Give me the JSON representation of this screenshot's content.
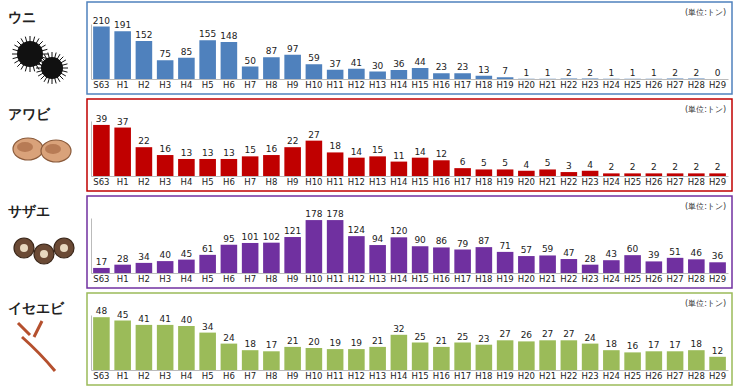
{
  "chart_data": [
    {
      "type": "bar",
      "title": "ウニ",
      "annotations": [
        "(単位:トン)"
      ],
      "categories": [
        "S63",
        "H1",
        "H2",
        "H3",
        "H4",
        "H5",
        "H6",
        "H7",
        "H8",
        "H9",
        "H10",
        "H11",
        "H12",
        "H13",
        "H14",
        "H15",
        "H16",
        "H17",
        "H18",
        "H19",
        "H20",
        "H21",
        "H22",
        "H23",
        "H24",
        "H25",
        "H26",
        "H27",
        "H28",
        "H29"
      ],
      "values": [
        210,
        191,
        152,
        75,
        85,
        155,
        148,
        50,
        87,
        97,
        59,
        37,
        41,
        30,
        36,
        44,
        23,
        23,
        13,
        7,
        1,
        1,
        2,
        2,
        1,
        1,
        1,
        2,
        2,
        0
      ],
      "color": "#4f81bd",
      "ylim": [
        0,
        220
      ],
      "data_labels": true,
      "tick_labels": "x",
      "grid": false
    },
    {
      "type": "bar",
      "title": "アワビ",
      "annotations": [
        "(単位:トン)"
      ],
      "categories": [
        "S63",
        "H1",
        "H2",
        "H3",
        "H4",
        "H5",
        "H6",
        "H7",
        "H8",
        "H9",
        "H10",
        "H11",
        "H12",
        "H13",
        "H14",
        "H15",
        "H16",
        "H17",
        "H18",
        "H19",
        "H20",
        "H21",
        "H22",
        "H23",
        "H24",
        "H25",
        "H26",
        "H27",
        "H28",
        "H29"
      ],
      "values": [
        39,
        37,
        22,
        16,
        13,
        13,
        13,
        15,
        16,
        22,
        27,
        18,
        14,
        15,
        11,
        14,
        12,
        6,
        5,
        5,
        4,
        5,
        3,
        4,
        2,
        2,
        2,
        2,
        2,
        2
      ],
      "color": "#c00000",
      "ylim": [
        0,
        42
      ],
      "data_labels": true,
      "tick_labels": "x",
      "grid": false
    },
    {
      "type": "bar",
      "title": "サザエ",
      "annotations": [
        "(単位:トン)"
      ],
      "categories": [
        "S63",
        "H1",
        "H2",
        "H3",
        "H4",
        "H5",
        "H6",
        "H7",
        "H8",
        "H9",
        "H10",
        "H11",
        "H12",
        "H13",
        "H14",
        "H15",
        "H16",
        "H17",
        "H18",
        "H19",
        "H20",
        "H21",
        "H22",
        "H23",
        "H24",
        "H25",
        "H26",
        "H27",
        "H28",
        "H29"
      ],
      "values": [
        17,
        28,
        34,
        40,
        45,
        61,
        95,
        101,
        102,
        121,
        178,
        178,
        124,
        94,
        120,
        90,
        86,
        79,
        87,
        71,
        57,
        59,
        47,
        28,
        43,
        60,
        39,
        51,
        46,
        36
      ],
      "color": "#7030a0",
      "ylim": [
        0,
        185
      ],
      "data_labels": true,
      "tick_labels": "x",
      "grid": false
    },
    {
      "type": "bar",
      "title": "イセエビ",
      "annotations": [
        "(単位:トン)"
      ],
      "categories": [
        "S63",
        "H1",
        "H2",
        "H3",
        "H4",
        "H5",
        "H6",
        "H7",
        "H8",
        "H9",
        "H10",
        "H11",
        "H12",
        "H13",
        "H14",
        "H15",
        "H16",
        "H17",
        "H18",
        "H19",
        "H20",
        "H21",
        "H22",
        "H23",
        "H24",
        "H25",
        "H26",
        "H27",
        "H28",
        "H29"
      ],
      "values": [
        48,
        45,
        41,
        41,
        40,
        34,
        24,
        18,
        17,
        21,
        20,
        19,
        19,
        21,
        32,
        25,
        21,
        25,
        23,
        27,
        26,
        27,
        27,
        24,
        18,
        16,
        17,
        17,
        18,
        12
      ],
      "color": "#9bbb59",
      "ylim": [
        0,
        50
      ],
      "data_labels": true,
      "tick_labels": "x",
      "grid": false
    }
  ]
}
